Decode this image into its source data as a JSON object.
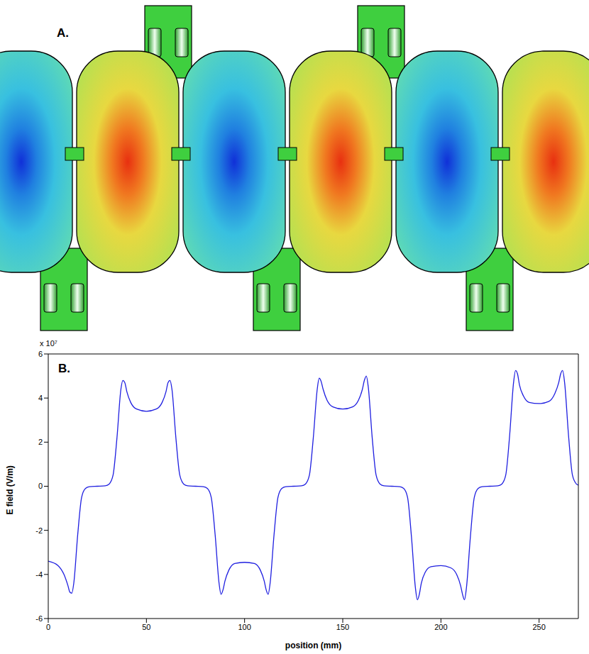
{
  "panel_a": {
    "label": "A."
  },
  "chart_data": {
    "type": "line",
    "label": "B.",
    "x_label": "position (mm)",
    "y_label": "E field (V/m)",
    "y_multiplier": "x 10⁷",
    "xlim": [
      0,
      270
    ],
    "ylim": [
      -6,
      6
    ],
    "xticks": [
      0,
      50,
      100,
      150,
      200,
      250
    ],
    "yticks": [
      -6,
      -4,
      -2,
      0,
      2,
      4,
      6
    ],
    "grid": false,
    "color": "#1f1fe0",
    "x": [
      0,
      5,
      8,
      10,
      11,
      12,
      13,
      15,
      17,
      19,
      21,
      25,
      29,
      31,
      33,
      35,
      37,
      38,
      39,
      40,
      42,
      45,
      50,
      55,
      58,
      60,
      61,
      62,
      63,
      65,
      67,
      69,
      71,
      75,
      79,
      81,
      83,
      85,
      87,
      88,
      89,
      90,
      92,
      95,
      100,
      105,
      108,
      110,
      111,
      112,
      113,
      115,
      117,
      119,
      121,
      125,
      129,
      131,
      133,
      135,
      137,
      138,
      139,
      140,
      142,
      145,
      150,
      155,
      158,
      160,
      161,
      162,
      163,
      165,
      167,
      169,
      171,
      175,
      179,
      181,
      183,
      185,
      187,
      188,
      189,
      190,
      192,
      195,
      200,
      205,
      208,
      210,
      211,
      212,
      213,
      215,
      217,
      219,
      221,
      225,
      229,
      231,
      233,
      235,
      237,
      238,
      239,
      240,
      242,
      245,
      250,
      255,
      258,
      260,
      261,
      262,
      263,
      265,
      267,
      269,
      270
    ],
    "values": [
      -3.4,
      -3.6,
      -4.0,
      -4.5,
      -4.8,
      -4.85,
      -4.4,
      -2.2,
      -0.5,
      -0.1,
      -0.02,
      0,
      0.02,
      0.1,
      0.5,
      2.2,
      4.4,
      4.8,
      4.7,
      4.3,
      3.8,
      3.5,
      3.4,
      3.5,
      3.8,
      4.3,
      4.7,
      4.8,
      4.4,
      2.2,
      0.5,
      0.1,
      0.02,
      0,
      -0.02,
      -0.1,
      -0.5,
      -2.2,
      -4.4,
      -4.9,
      -4.7,
      -4.3,
      -3.8,
      -3.5,
      -3.45,
      -3.5,
      -3.8,
      -4.3,
      -4.7,
      -4.9,
      -4.4,
      -2.2,
      -0.5,
      -0.1,
      -0.02,
      0,
      0.02,
      0.1,
      0.5,
      2.2,
      4.4,
      4.9,
      4.75,
      4.4,
      3.9,
      3.6,
      3.5,
      3.6,
      3.9,
      4.4,
      4.8,
      5.0,
      4.5,
      2.2,
      0.5,
      0.1,
      0.02,
      0,
      -0.02,
      -0.1,
      -0.5,
      -2.3,
      -4.6,
      -5.15,
      -4.9,
      -4.4,
      -3.9,
      -3.65,
      -3.6,
      -3.7,
      -4.0,
      -4.5,
      -4.9,
      -5.15,
      -4.6,
      -2.3,
      -0.5,
      -0.1,
      -0.02,
      0,
      0.02,
      0.1,
      0.5,
      2.3,
      4.7,
      5.25,
      5.1,
      4.6,
      4.1,
      3.8,
      3.75,
      3.85,
      4.2,
      4.7,
      5.1,
      5.25,
      4.7,
      2.3,
      0.5,
      0.1,
      0.05
    ]
  }
}
